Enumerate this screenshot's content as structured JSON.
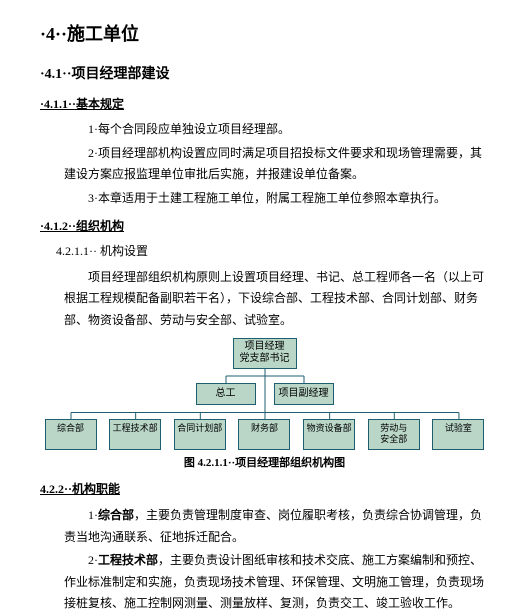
{
  "doc": {
    "h1": "·4··施工单位",
    "s41": {
      "title": "·4.1··项目经理部建设"
    },
    "s411": {
      "title": "·4.1.1··基本规定",
      "p1": "1·每个合同段应单独设立项目经理部。",
      "p2": "2·项目经理部机构设置应同时满足项目招投标文件要求和现场管理需要，其建设方案应报监理单位审批后实施，并报建设单位备案。",
      "p3": "3·本章适用于土建工程施工单位，附属工程施工单位参照本章执行。"
    },
    "s412": {
      "title": "·4.1.2··组织机构",
      "s4211": {
        "title": "4.2.1.1·· 机构设置",
        "p1": "项目经理部组织机构原则上设置项目经理、书记、总工程师各一名（以上可根据工程规模配备副职若干名），下设综合部、工程技术部、合同计划部、财务部、物资设备部、劳动与安全部、试验室。"
      },
      "caption": "图 4.2.1.1··项目经理部组织机构图"
    },
    "s422": {
      "title": "4.2.2··机构职能",
      "p1_a": "1·",
      "p1_b": "综合部",
      "p1_c": "，主要负责管理制度审查、岗位履职考核，负责综合协调管理，负责当地沟通联系、征地拆迁配合。",
      "p2_a": "2·",
      "p2_b": "工程技术部",
      "p2_c": "，主要负责设计图纸审核和技术交底、施工方案编制和预控、作业标准制定和实施，负责现场技术管理、环保管理、文明施工管理，负责现场接桩复核、施工控制网测量、测量放样、复测，负责交工、竣工验收工作。"
    }
  },
  "chart": {
    "node_fill": "#b9d6c7",
    "node_border": "#1e5f6f",
    "line_color": "#1e5f6f",
    "top": "项目经理\n党支部书记",
    "mid": [
      "总工",
      "项目副经理"
    ],
    "bottom": [
      "综合部",
      "工程技术部",
      "合同计划部",
      "财务部",
      "物资设备部",
      "劳动与\n安全部",
      "试验室"
    ]
  }
}
